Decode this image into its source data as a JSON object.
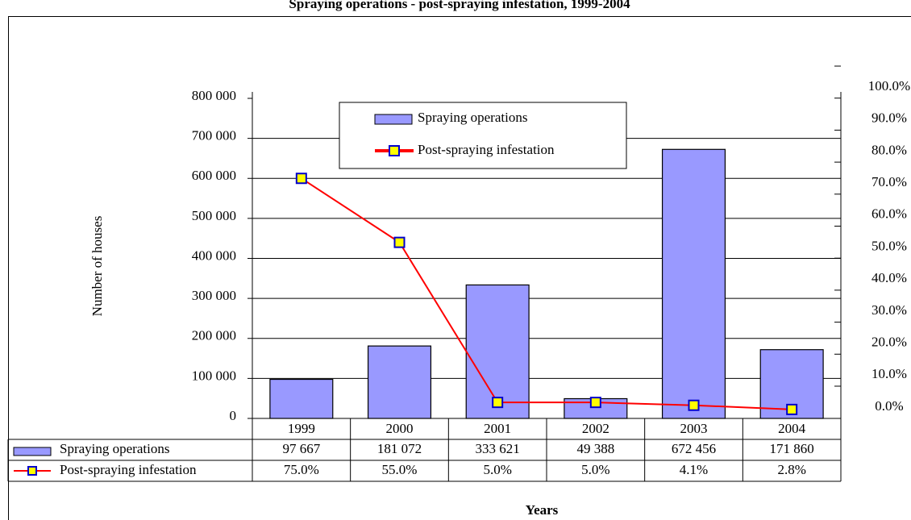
{
  "chart_data": {
    "type": "bar",
    "title": "Spraying operations - post-spraying infestation, 1999-2004",
    "y_label": "Number of houses",
    "x_label": "Years",
    "categories": [
      "1999",
      "2000",
      "2001",
      "2002",
      "2003",
      "2004"
    ],
    "series": [
      {
        "name": "Spraying operations",
        "type": "bar",
        "color": "#9999ff",
        "values": [
          97667,
          181072,
          333621,
          49388,
          672456,
          171860
        ],
        "value_labels": [
          "97 667",
          "181 072",
          "333 621",
          "49 388",
          "672 456",
          "171 860"
        ]
      },
      {
        "name": "Post-spraying infestation",
        "type": "line",
        "axis": "y2",
        "color": "#ff0000",
        "marker_color": "#ffff00",
        "marker_edge_color": "#0000cc",
        "values": [
          75.0,
          55.0,
          5.0,
          5.0,
          4.1,
          2.8
        ],
        "value_labels": [
          "75.0%",
          "55.0%",
          "5.0%",
          "5.0%",
          "4.1%",
          "2.8%"
        ]
      }
    ],
    "ylim": [
      0,
      800000
    ],
    "yticks": [
      0,
      {
        "value": 100000,
        "label": "100 000"
      },
      {
        "value": 200000,
        "label": "200 000"
      },
      {
        "value": 300000,
        "label": "300 000"
      },
      {
        "value": 400000,
        "label": "400 000"
      },
      {
        "value": 500000,
        "label": "500 000"
      },
      {
        "value": 600000,
        "label": "600 000"
      },
      {
        "value": 700000,
        "label": "700 000"
      },
      {
        "value": 800000,
        "label": "800 000"
      }
    ],
    "y2lim": [
      0,
      100
    ],
    "y2ticks": [
      {
        "value": 0,
        "label": "0.0%"
      },
      {
        "value": 10,
        "label": "10.0%"
      },
      {
        "value": 20,
        "label": "20.0%"
      },
      {
        "value": 30,
        "label": "30.0%"
      },
      {
        "value": 40,
        "label": "40.0%"
      },
      {
        "value": 50,
        "label": "50.0%"
      },
      {
        "value": 60,
        "label": "60.0%"
      },
      {
        "value": 70,
        "label": "70.0%"
      },
      {
        "value": 80,
        "label": "80.0%"
      },
      {
        "value": 90,
        "label": "90.0%"
      },
      {
        "value": 100,
        "label": "100.0%"
      }
    ],
    "grid": true,
    "legend": "top"
  }
}
